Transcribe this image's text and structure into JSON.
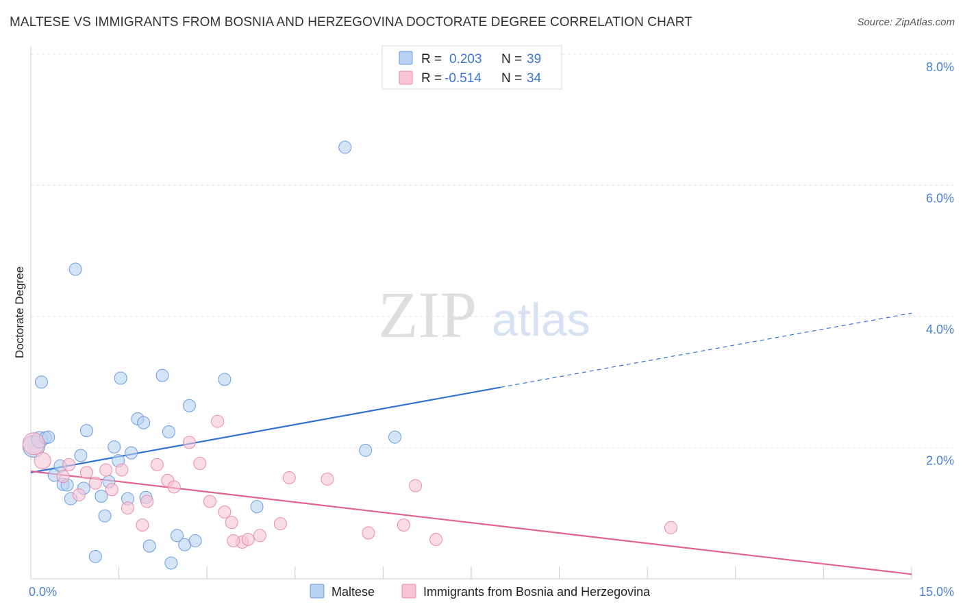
{
  "header": {
    "title": "MALTESE VS IMMIGRANTS FROM BOSNIA AND HERZEGOVINA DOCTORATE DEGREE CORRELATION CHART",
    "source": "Source: ZipAtlas.com"
  },
  "watermark": {
    "zip": "ZIP",
    "atlas": "atlas"
  },
  "legend": {
    "r_label": "R =",
    "n_label": "N =",
    "rows": [
      {
        "r": "0.203",
        "n": "39"
      },
      {
        "r": "-0.514",
        "n": "34"
      }
    ]
  },
  "colors": {
    "blue_fill": "#b8d2f2",
    "blue_stroke": "#6b9be0",
    "blue_line": "#2f72d3",
    "pink_fill": "#f7c5d5",
    "pink_stroke": "#e88aaa",
    "pink_line": "#e2638f",
    "grid": "#e2e2e2",
    "tick_text": "#4a7fd4"
  },
  "chart_data": {
    "type": "scatter",
    "title": "MALTESE VS IMMIGRANTS FROM BOSNIA AND HERZEGOVINA DOCTORATE DEGREE CORRELATION CHART",
    "xlabel": "",
    "ylabel": "Doctorate Degree",
    "xlim": [
      0,
      15
    ],
    "ylim": [
      0,
      8
    ],
    "x_tick_labels": [
      "0.0%",
      "15.0%"
    ],
    "y_ticks": [
      2,
      4,
      6,
      8
    ],
    "y_tick_labels": [
      "2.0%",
      "4.0%",
      "6.0%",
      "8.0%"
    ],
    "grid": true,
    "legend_position": "bottom",
    "series": [
      {
        "name": "Maltese",
        "color": "blue",
        "r": 0.203,
        "n": 39,
        "trend": {
          "x": [
            0,
            8.0
          ],
          "y": [
            1.62,
            2.92
          ],
          "dashed_to": [
            15,
            4.05
          ]
        },
        "points": [
          [
            0.05,
            2.02,
            16
          ],
          [
            0.15,
            2.12,
            12
          ],
          [
            0.25,
            2.15,
            9
          ],
          [
            0.3,
            2.16,
            9
          ],
          [
            0.18,
            3.0,
            9
          ],
          [
            0.5,
            1.72,
            9
          ],
          [
            0.4,
            1.58,
            9
          ],
          [
            0.55,
            1.44,
            9
          ],
          [
            0.62,
            1.43,
            9
          ],
          [
            0.68,
            1.22,
            9
          ],
          [
            0.85,
            1.88,
            9
          ],
          [
            0.9,
            1.38,
            9
          ],
          [
            0.95,
            2.26,
            9
          ],
          [
            0.76,
            4.72,
            9
          ],
          [
            1.1,
            0.34,
            9
          ],
          [
            1.2,
            1.26,
            9
          ],
          [
            1.26,
            0.96,
            9
          ],
          [
            1.33,
            1.48,
            9
          ],
          [
            1.42,
            2.01,
            9
          ],
          [
            1.49,
            1.8,
            9
          ],
          [
            1.53,
            3.06,
            9
          ],
          [
            1.65,
            1.22,
            9
          ],
          [
            1.71,
            1.92,
            9
          ],
          [
            1.82,
            2.44,
            9
          ],
          [
            1.92,
            2.38,
            9
          ],
          [
            1.96,
            1.24,
            9
          ],
          [
            2.02,
            0.5,
            9
          ],
          [
            2.24,
            3.1,
            9
          ],
          [
            2.35,
            2.24,
            9
          ],
          [
            2.49,
            0.66,
            9
          ],
          [
            2.62,
            0.52,
            9
          ],
          [
            2.7,
            2.64,
            9
          ],
          [
            2.8,
            0.58,
            9
          ],
          [
            2.39,
            0.24,
            9
          ],
          [
            3.3,
            3.04,
            9
          ],
          [
            3.85,
            1.1,
            9
          ],
          [
            5.35,
            6.58,
            9
          ],
          [
            5.7,
            1.96,
            9
          ],
          [
            6.2,
            2.16,
            9
          ]
        ]
      },
      {
        "name": "Immigrants from Bosnia and Herzegovina",
        "color": "pink",
        "r": -0.514,
        "n": 34,
        "trend": {
          "x": [
            0,
            15
          ],
          "y": [
            1.64,
            0.07
          ]
        },
        "points": [
          [
            0.05,
            2.06,
            16
          ],
          [
            0.2,
            1.8,
            12
          ],
          [
            0.55,
            1.56,
            9
          ],
          [
            0.65,
            1.74,
            9
          ],
          [
            0.82,
            1.28,
            9
          ],
          [
            0.95,
            1.62,
            9
          ],
          [
            1.1,
            1.46,
            9
          ],
          [
            1.28,
            1.66,
            9
          ],
          [
            1.38,
            1.36,
            9
          ],
          [
            1.55,
            1.66,
            9
          ],
          [
            1.65,
            1.08,
            9
          ],
          [
            1.9,
            0.82,
            9
          ],
          [
            1.98,
            1.18,
            9
          ],
          [
            2.15,
            1.74,
            9
          ],
          [
            2.33,
            1.5,
            9
          ],
          [
            2.44,
            1.4,
            9
          ],
          [
            2.7,
            2.08,
            9
          ],
          [
            2.88,
            1.76,
            9
          ],
          [
            3.05,
            1.18,
            9
          ],
          [
            3.18,
            2.4,
            9
          ],
          [
            3.3,
            1.02,
            9
          ],
          [
            3.42,
            0.86,
            9
          ],
          [
            3.6,
            0.56,
            9
          ],
          [
            3.7,
            0.6,
            9
          ],
          [
            3.9,
            0.66,
            9
          ],
          [
            4.25,
            0.84,
            9
          ],
          [
            4.4,
            1.54,
            9
          ],
          [
            5.05,
            1.52,
            9
          ],
          [
            5.75,
            0.7,
            9
          ],
          [
            6.35,
            0.82,
            9
          ],
          [
            6.55,
            1.42,
            9
          ],
          [
            6.9,
            0.6,
            9
          ],
          [
            10.9,
            0.78,
            9
          ],
          [
            3.45,
            0.58,
            9
          ]
        ]
      }
    ]
  },
  "bottom_legend": {
    "items": [
      {
        "label": "Maltese"
      },
      {
        "label": "Immigrants from Bosnia and Herzegovina"
      }
    ]
  }
}
